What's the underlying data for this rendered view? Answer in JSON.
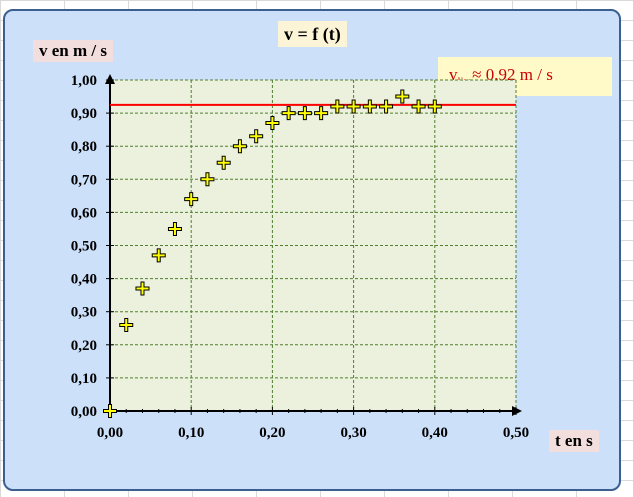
{
  "chart_data": {
    "type": "scatter",
    "title": "v = f (t)",
    "xlabel": "t en s",
    "ylabel": "v en m / s",
    "xlim": [
      0,
      0.5
    ],
    "ylim": [
      0,
      1.0
    ],
    "xticks": [
      "0,00",
      "0,10",
      "0,20",
      "0,30",
      "0,40",
      "0,50"
    ],
    "yticks": [
      "0,00",
      "0,10",
      "0,20",
      "0,30",
      "0,40",
      "0,50",
      "0,60",
      "0,70",
      "0,80",
      "0,90",
      "1,00"
    ],
    "grid": true,
    "series": [
      {
        "x": [
          0,
          0.02,
          0.04,
          0.06,
          0.08,
          0.1,
          0.12,
          0.14,
          0.16,
          0.18,
          0.2,
          0.22,
          0.24,
          0.26,
          0.28,
          0.3,
          0.32,
          0.34,
          0.36,
          0.38,
          0.4
        ],
        "y": [
          0.0,
          0.26,
          0.37,
          0.47,
          0.55,
          0.64,
          0.7,
          0.75,
          0.8,
          0.83,
          0.87,
          0.9,
          0.9,
          0.9,
          0.92,
          0.92,
          0.92,
          0.92,
          0.95,
          0.92,
          0.92
        ],
        "marker": "plus",
        "color": "#ffff00"
      }
    ],
    "hline": {
      "y": 0.925,
      "color": "#ff0000"
    },
    "annotation": {
      "main": "v",
      "sub": "lim",
      "rest": "≈ 0,92 m / s",
      "color": "#cc0000"
    },
    "colors": {
      "plot_bg": "#ebf1dd",
      "grid": "#4f7f2f",
      "frame": "#cce0fa"
    }
  }
}
